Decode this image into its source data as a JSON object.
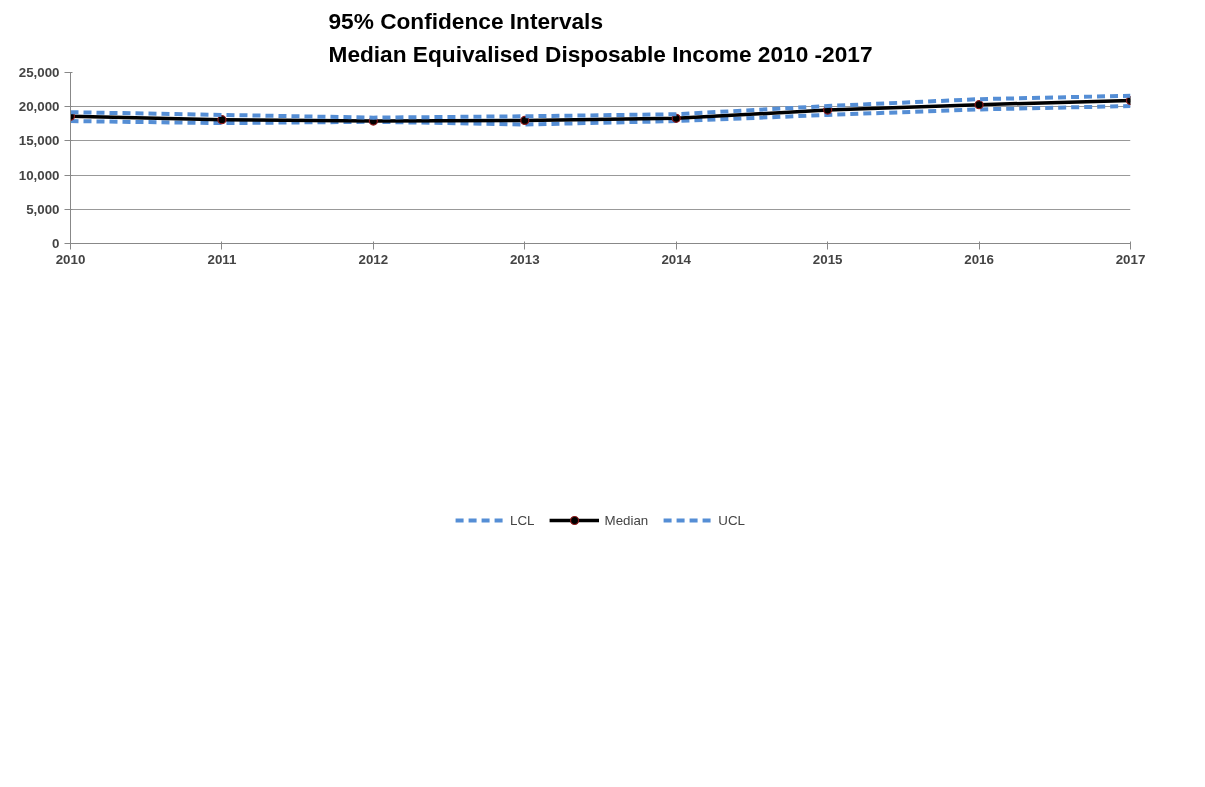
{
  "chart_data": {
    "type": "line",
    "title": "95% Confidence Intervals\nMedian Equivalised Disposable Income 2010 -2017",
    "x": [
      2010,
      2011,
      2012,
      2013,
      2014,
      2015,
      2016,
      2017
    ],
    "series": [
      {
        "name": "LCL",
        "color": "#558ed5",
        "line_style": "dashed",
        "marker": "none",
        "values": [
          17900,
          17600,
          17800,
          17400,
          17900,
          18800,
          19600,
          20100
        ]
      },
      {
        "name": "Median",
        "color": "#000000",
        "line_style": "solid",
        "marker": "circle",
        "values": [
          18600,
          18100,
          17900,
          18000,
          18300,
          19500,
          20300,
          20900
        ]
      },
      {
        "name": "UCL",
        "color": "#558ed5",
        "line_style": "dashed",
        "marker": "none",
        "values": [
          19200,
          18800,
          18400,
          18600,
          18900,
          20100,
          21100,
          21600
        ]
      }
    ],
    "xlim": [
      2010,
      2017
    ],
    "xticks": [
      2010,
      2011,
      2012,
      2013,
      2014,
      2015,
      2016,
      2017
    ],
    "ylim": [
      0,
      25000
    ],
    "yticks": [
      {
        "value": 0,
        "label": "0"
      },
      {
        "value": 5000,
        "label": "5,000"
      },
      {
        "value": 10000,
        "label": "10,000"
      },
      {
        "value": 15000,
        "label": "15,000"
      },
      {
        "value": 20000,
        "label": "20,000"
      },
      {
        "value": 25000,
        "label": "25,000"
      }
    ],
    "grid": "y",
    "legend": "bottom"
  }
}
